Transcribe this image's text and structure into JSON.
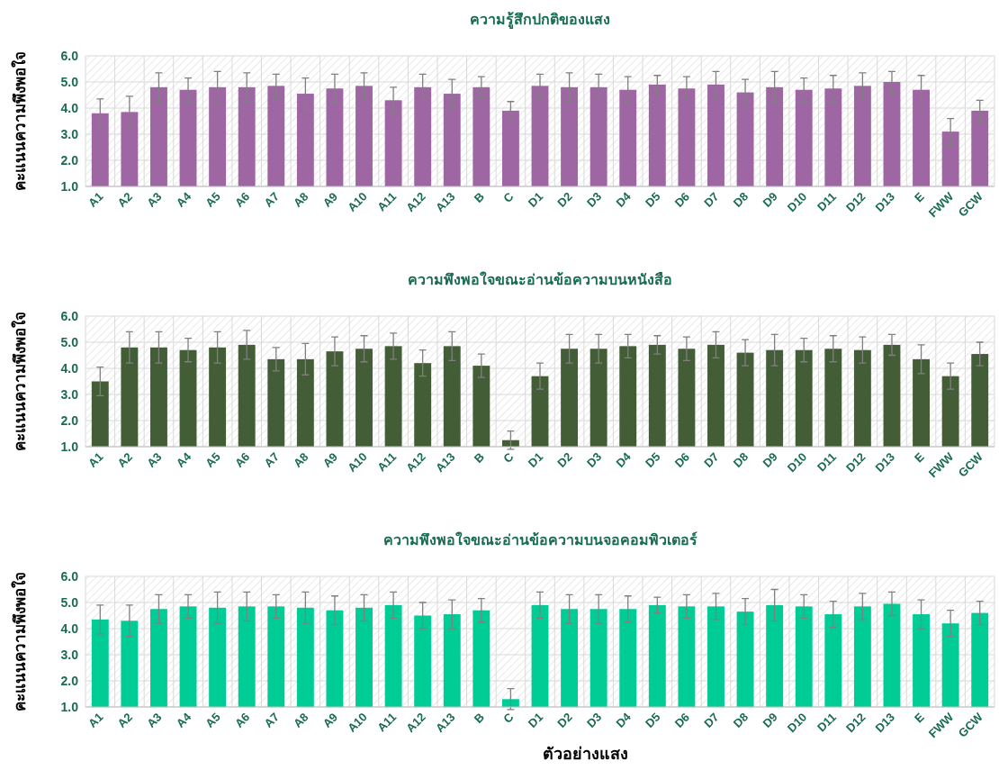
{
  "chart_data": [
    {
      "type": "bar",
      "title": "ความรู้สึกปกติของแสง",
      "ylabel": "คะแนนความพึงพอใจ",
      "categories": [
        "A1",
        "A2",
        "A3",
        "A4",
        "A5",
        "A6",
        "A7",
        "A8",
        "A9",
        "A10",
        "A11",
        "A12",
        "A13",
        "B",
        "C",
        "D1",
        "D2",
        "D3",
        "D4",
        "D5",
        "D6",
        "D7",
        "D8",
        "D9",
        "D10",
        "D11",
        "D12",
        "D13",
        "E",
        "FWW",
        "GCW"
      ],
      "series": [
        {
          "color": "#9e67a3",
          "values": [
            3.8,
            3.85,
            4.8,
            4.7,
            4.8,
            4.8,
            4.85,
            4.55,
            4.75,
            4.85,
            4.3,
            4.8,
            4.55,
            4.8,
            3.9,
            4.85,
            4.8,
            4.8,
            4.7,
            4.9,
            4.75,
            4.9,
            4.6,
            4.8,
            4.7,
            4.75,
            4.85,
            5.0,
            4.7,
            3.1,
            3.9
          ],
          "errors": [
            0.55,
            0.6,
            0.55,
            0.45,
            0.6,
            0.55,
            0.45,
            0.6,
            0.55,
            0.5,
            0.5,
            0.5,
            0.55,
            0.4,
            0.35,
            0.45,
            0.55,
            0.5,
            0.5,
            0.35,
            0.45,
            0.5,
            0.5,
            0.6,
            0.45,
            0.5,
            0.5,
            0.4,
            0.55,
            0.5,
            0.4
          ]
        }
      ],
      "ylim": [
        1,
        6
      ],
      "yticks": [
        {
          "value": 1,
          "label": "1.0"
        },
        {
          "value": 2,
          "label": "2.0"
        },
        {
          "value": 3,
          "label": "3.0"
        },
        {
          "value": 4,
          "label": "4.0"
        },
        {
          "value": 5,
          "label": "5.0"
        },
        {
          "value": 6,
          "label": "6.0"
        }
      ],
      "grid": true
    },
    {
      "type": "bar",
      "title": "ความพึงพอใจขณะอ่านข้อความบนหนังสือ",
      "ylabel": "คะแนนความพึงพอใจ",
      "categories": [
        "A1",
        "A2",
        "A3",
        "A4",
        "A5",
        "A6",
        "A7",
        "A8",
        "A9",
        "A10",
        "A11",
        "A12",
        "A13",
        "B",
        "C",
        "D1",
        "D2",
        "D3",
        "D4",
        "D5",
        "D6",
        "D7",
        "D8",
        "D9",
        "D10",
        "D11",
        "D12",
        "D13",
        "E",
        "FWW",
        "GCW"
      ],
      "series": [
        {
          "color": "#435d36",
          "values": [
            3.5,
            4.8,
            4.8,
            4.7,
            4.8,
            4.9,
            4.35,
            4.35,
            4.65,
            4.75,
            4.85,
            4.2,
            4.85,
            4.1,
            1.25,
            3.7,
            4.75,
            4.75,
            4.85,
            4.9,
            4.75,
            4.9,
            4.6,
            4.7,
            4.7,
            4.75,
            4.7,
            4.9,
            4.35,
            3.7,
            4.55
          ],
          "errors": [
            0.55,
            0.6,
            0.6,
            0.45,
            0.6,
            0.55,
            0.45,
            0.6,
            0.55,
            0.5,
            0.5,
            0.5,
            0.55,
            0.45,
            0.35,
            0.5,
            0.55,
            0.55,
            0.45,
            0.35,
            0.45,
            0.5,
            0.5,
            0.6,
            0.45,
            0.5,
            0.5,
            0.4,
            0.55,
            0.5,
            0.45
          ]
        }
      ],
      "ylim": [
        1,
        6
      ],
      "yticks": [
        {
          "value": 1,
          "label": "1.0"
        },
        {
          "value": 2,
          "label": "2.0"
        },
        {
          "value": 3,
          "label": "3.0"
        },
        {
          "value": 4,
          "label": "4.0"
        },
        {
          "value": 5,
          "label": "5.0"
        },
        {
          "value": 6,
          "label": "6.0"
        }
      ],
      "grid": true
    },
    {
      "type": "bar",
      "title": "ความพึงพอใจขณะอ่านข้อความบนจอคอมพิวเตอร์",
      "xlabel": "ตัวอย่างแสง",
      "ylabel": "คะแนนความพึงพอใจ",
      "categories": [
        "A1",
        "A2",
        "A3",
        "A4",
        "A5",
        "A6",
        "A7",
        "A8",
        "A9",
        "A10",
        "A11",
        "A12",
        "A13",
        "B",
        "C",
        "D1",
        "D2",
        "D3",
        "D4",
        "D5",
        "D6",
        "D7",
        "D8",
        "D9",
        "D10",
        "D11",
        "D12",
        "D13",
        "E",
        "FWW",
        "GCW"
      ],
      "series": [
        {
          "color": "#00cc96",
          "values": [
            4.35,
            4.3,
            4.75,
            4.85,
            4.8,
            4.85,
            4.85,
            4.8,
            4.7,
            4.8,
            4.9,
            4.5,
            4.55,
            4.7,
            1.3,
            4.9,
            4.75,
            4.75,
            4.75,
            4.9,
            4.85,
            4.85,
            4.65,
            4.9,
            4.85,
            4.55,
            4.85,
            4.95,
            4.55,
            4.2,
            4.6
          ],
          "errors": [
            0.55,
            0.6,
            0.55,
            0.45,
            0.6,
            0.55,
            0.45,
            0.6,
            0.55,
            0.5,
            0.5,
            0.5,
            0.55,
            0.45,
            0.4,
            0.5,
            0.55,
            0.55,
            0.5,
            0.3,
            0.45,
            0.5,
            0.5,
            0.6,
            0.45,
            0.5,
            0.5,
            0.45,
            0.55,
            0.5,
            0.45
          ]
        }
      ],
      "ylim": [
        1,
        6
      ],
      "yticks": [
        {
          "value": 1,
          "label": "1.0"
        },
        {
          "value": 2,
          "label": "2.0"
        },
        {
          "value": 3,
          "label": "3.0"
        },
        {
          "value": 4,
          "label": "4.0"
        },
        {
          "value": 5,
          "label": "5.0"
        },
        {
          "value": 6,
          "label": "6.0"
        }
      ],
      "grid": true
    }
  ]
}
